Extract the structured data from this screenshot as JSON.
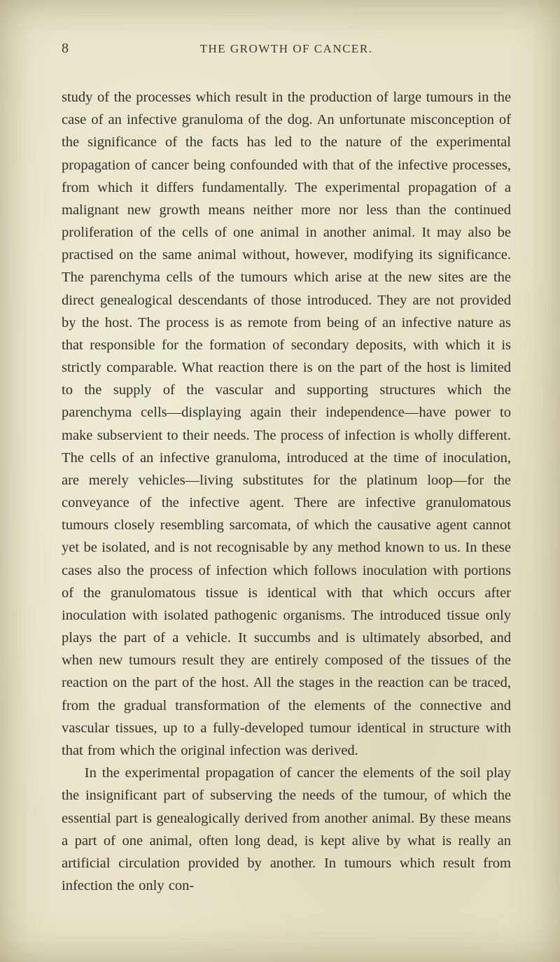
{
  "page": {
    "number": "8",
    "running_title": "THE GROWTH OF CANCER.",
    "background_color": "#e8e3c8",
    "text_color": "#2f2f27",
    "body_fontsize_pt": 15,
    "line_height": 1.57,
    "font_family": "Century Schoolbook, Georgia, serif",
    "paragraphs": [
      "study of the processes which result in the production of large tumours in the case of an infective granuloma of the dog. An unfortunate misconception of the significance of the facts has led to the nature of the experimental propagation of cancer being confounded with that of the infective processes, from which it differs fundamentally. The experimental propagation of a malig­nant new growth means neither more nor less than the continued proliferation of the cells of one animal in another animal. It may also be practised on the same animal without, however, modifying its significance. The parenchyma cells of the tumours which arise at the new sites are the direct genealogical descendants of those introduced. They are not provided by the host. The process is as remote from being of an infective nature as that responsible for the formation of secondary deposits, with which it is strictly comparable. What reaction there is on the part of the host is limited to the supply of the vascular and supporting structures which the parenchyma cells—displaying again their independence—have power to make subservient to their needs. The process of infection is wholly different. The cells of an infective granuloma, introduced at the time of inoculation, are merely vehicles—living substitutes for the platinum loop—for the conveyance of the infec­tive agent. There are infective granulomatous tumours closely resembling sarcomata, of which the causative agent cannot yet be isolated, and is not recognisable by any method known to us. In these cases also the process of infection which follows inoculation with portions of the granulomatous tissue is identical with that which occurs after inoculation with isolated pathogenic organisms. The introduced tissue only plays the part of a vehicle. It succumbs and is ultimately absorbed, and when new tumours result they are entirely composed of the tissues of the reaction on the part of the host. All the stages in the reaction can be traced, from the gradual transformation of the elements of the connective and vascular tissues, up to a fully-developed tumour identical in struc­ture with that from which the original infection was derived.",
      "In the experimental propagation of cancer the elements of the soil play the insignificant part of subserving the needs of the tumour, of which the essential part is genealogically derived from another animal. By these means a part of one animal, often long dead, is kept alive by what is really an artificial circulation provided by another. In tumours which result from infection the only con-"
    ]
  }
}
